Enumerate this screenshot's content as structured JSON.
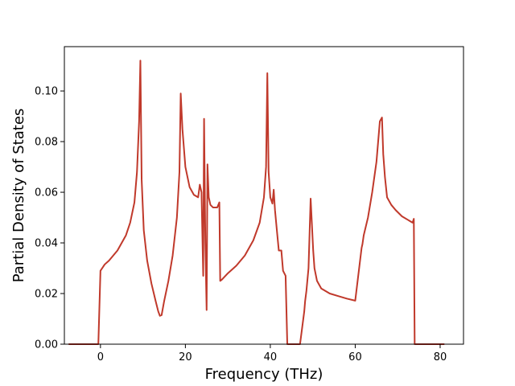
{
  "chart_data": {
    "type": "line",
    "xlabel": "Frequency (THz)",
    "ylabel": "Partial Density of States",
    "xlim": [
      -8.5,
      85.5
    ],
    "ylim": [
      0,
      0.1175
    ],
    "grid": false,
    "xticks": [
      0,
      20,
      40,
      60,
      80
    ],
    "xtick_labels": [
      "0",
      "20",
      "40",
      "60",
      "80"
    ],
    "yticks": [
      0.0,
      0.02,
      0.04,
      0.06,
      0.08,
      0.1
    ],
    "ytick_labels": [
      "0.00",
      "0.02",
      "0.04",
      "0.06",
      "0.08",
      "0.10"
    ],
    "series": [
      {
        "color": "#c0392b",
        "x": [
          -7.5,
          -1,
          -0.5,
          0,
          1,
          2,
          4,
          6,
          7,
          8,
          8.6,
          9.1,
          9.4,
          9.7,
          10.2,
          11,
          12,
          13,
          13.6,
          14,
          14.4,
          15,
          16,
          17,
          18,
          18.6,
          18.9,
          19.3,
          20,
          21,
          22,
          23,
          23.4,
          23.8,
          24.2,
          24.4,
          24.7,
          25,
          25.2,
          25.5,
          25.9,
          26.5,
          27.5,
          28,
          28.2,
          28.6,
          30,
          32,
          34,
          36,
          37.5,
          38.5,
          39,
          39.3,
          39.6,
          40,
          40.5,
          40.8,
          41.1,
          41.6,
          42,
          42.6,
          43,
          43.6,
          44,
          44.4,
          44.6,
          45,
          47,
          48,
          48.2,
          48.5,
          49,
          49.5,
          50.1,
          50.4,
          51,
          52,
          54,
          56,
          58,
          60,
          61.5,
          61.7,
          62,
          63,
          64,
          65,
          65.8,
          66.3,
          66.6,
          67,
          67.5,
          68.5,
          69.5,
          71,
          72.5,
          73.5,
          73.8,
          74,
          74.2,
          74.5,
          81
        ],
        "y": [
          0,
          0,
          0,
          0.029,
          0.0315,
          0.033,
          0.037,
          0.043,
          0.048,
          0.056,
          0.068,
          0.088,
          0.112,
          0.065,
          0.045,
          0.033,
          0.024,
          0.017,
          0.013,
          0.0112,
          0.0115,
          0.017,
          0.025,
          0.035,
          0.05,
          0.068,
          0.099,
          0.085,
          0.07,
          0.062,
          0.059,
          0.058,
          0.063,
          0.06,
          0.027,
          0.089,
          0.04,
          0.0135,
          0.071,
          0.058,
          0.055,
          0.054,
          0.054,
          0.056,
          0.025,
          0.0255,
          0.028,
          0.031,
          0.035,
          0.041,
          0.048,
          0.058,
          0.07,
          0.107,
          0.068,
          0.058,
          0.0555,
          0.061,
          0.053,
          0.044,
          0.037,
          0.037,
          0.029,
          0.027,
          0,
          0,
          0,
          0,
          0,
          0.013,
          0.017,
          0.021,
          0.03,
          0.0575,
          0.037,
          0.03,
          0.025,
          0.022,
          0.02,
          0.019,
          0.018,
          0.0172,
          0.038,
          0.0395,
          0.043,
          0.05,
          0.06,
          0.072,
          0.088,
          0.0895,
          0.075,
          0.066,
          0.058,
          0.055,
          0.053,
          0.0505,
          0.049,
          0.048,
          0.0495,
          0,
          0,
          0,
          0
        ]
      }
    ]
  }
}
